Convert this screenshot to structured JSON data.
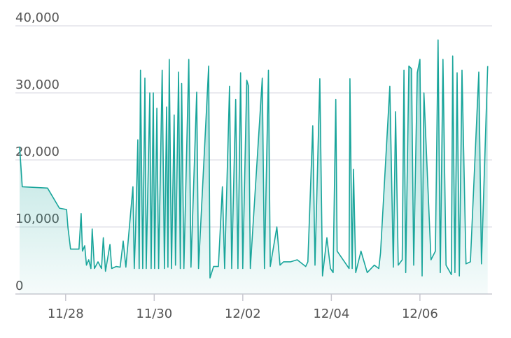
{
  "chart_data": {
    "type": "area",
    "color": "#19a59b",
    "grid": true,
    "xlim": [
      26.96,
      37.63
    ],
    "xticks": [
      {
        "value": 28,
        "label": "11/28"
      },
      {
        "value": 30,
        "label": "11/30"
      },
      {
        "value": 32,
        "label": "12/02"
      },
      {
        "value": 34,
        "label": "12/04"
      },
      {
        "value": 36,
        "label": "12/06"
      }
    ],
    "ylim": [
      0,
      40000
    ],
    "yticks": [
      0,
      {
        "value": 10000,
        "label": "10,000"
      },
      {
        "value": 20000,
        "label": "20,000"
      },
      {
        "value": 30000,
        "label": "30,000"
      },
      {
        "value": 40000,
        "label": "40,000"
      }
    ],
    "x": [
      26.96,
      27.02,
      27.59,
      27.86,
      28.02,
      28.05,
      28.11,
      28.3,
      28.35,
      28.38,
      28.43,
      28.47,
      28.52,
      28.57,
      28.6,
      28.65,
      28.73,
      28.81,
      28.85,
      28.9,
      29.0,
      29.04,
      29.14,
      29.23,
      29.3,
      29.36,
      29.52,
      29.55,
      29.58,
      29.63,
      29.66,
      29.69,
      29.74,
      29.79,
      29.82,
      29.9,
      29.93,
      29.98,
      30.01,
      30.06,
      30.1,
      30.18,
      30.23,
      30.28,
      30.31,
      30.34,
      30.39,
      30.45,
      30.48,
      30.55,
      30.59,
      30.62,
      30.67,
      30.78,
      30.83,
      30.96,
      31.0,
      31.23,
      31.26,
      31.34,
      31.45,
      31.54,
      31.59,
      31.7,
      31.75,
      31.84,
      31.89,
      31.95,
      32.0,
      32.09,
      32.13,
      32.17,
      32.44,
      32.49,
      32.58,
      32.62,
      32.77,
      32.84,
      32.92,
      33.08,
      33.23,
      33.42,
      33.47,
      33.58,
      33.63,
      33.74,
      33.8,
      33.9,
      33.98,
      34.04,
      34.1,
      34.13,
      34.4,
      34.42,
      34.47,
      34.5,
      34.55,
      34.67,
      34.81,
      34.97,
      35.07,
      35.11,
      35.32,
      35.4,
      35.45,
      35.51,
      35.6,
      35.64,
      35.68,
      35.75,
      35.81,
      35.86,
      35.94,
      36.0,
      36.05,
      36.09,
      36.25,
      36.35,
      36.41,
      36.46,
      36.52,
      36.59,
      36.71,
      36.74,
      36.79,
      36.84,
      36.89,
      36.95,
      37.04,
      37.14,
      37.33,
      37.39,
      37.53
    ],
    "values": [
      22000,
      16000,
      15800,
      12800,
      12600,
      10000,
      6700,
      6700,
      12000,
      6400,
      7200,
      4300,
      5100,
      3800,
      9700,
      3800,
      4800,
      3800,
      8400,
      3400,
      7400,
      3800,
      4100,
      4000,
      7900,
      4000,
      16000,
      3800,
      9500,
      23000,
      3800,
      33400,
      3800,
      32200,
      3800,
      30000,
      3800,
      30000,
      3800,
      27700,
      3800,
      33400,
      3800,
      27900,
      4000,
      35000,
      3800,
      26700,
      4300,
      33100,
      3800,
      31400,
      3800,
      35000,
      4000,
      30100,
      3800,
      34000,
      2400,
      4100,
      4100,
      16000,
      3800,
      31000,
      3800,
      29000,
      3800,
      33000,
      3800,
      31900,
      31000,
      3800,
      32200,
      3800,
      33400,
      4100,
      10000,
      4300,
      4800,
      4800,
      5100,
      4100,
      4800,
      25100,
      4300,
      32100,
      2700,
      8400,
      3800,
      3200,
      29000,
      6400,
      3800,
      32100,
      3800,
      18600,
      3200,
      6400,
      3200,
      4300,
      3800,
      6100,
      31000,
      4000,
      27200,
      4300,
      5100,
      33400,
      3200,
      34000,
      33600,
      4300,
      33000,
      35000,
      2700,
      30000,
      5100,
      6400,
      37900,
      3200,
      35000,
      4300,
      2900,
      35500,
      3200,
      33000,
      2700,
      33400,
      4500,
      4800,
      33100,
      4500,
      34000
    ]
  }
}
